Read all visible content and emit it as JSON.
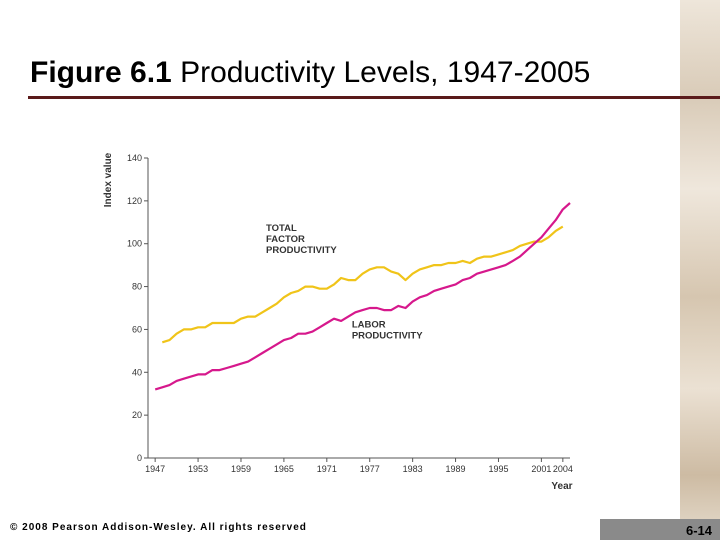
{
  "title": {
    "bold": "Figure 6.1",
    "rest": "Productivity Levels, 1947-2005"
  },
  "footer": {
    "copyright": "© 2008 Pearson Addison-Wesley. All rights reserved",
    "slide_number": "6-14"
  },
  "colors": {
    "tfp": "#f0c419",
    "labor": "#d6188c",
    "axis": "#555555",
    "label": "#333333"
  },
  "chart_data": {
    "type": "line",
    "ylabel": "Index value",
    "xlabel": "Year",
    "xlim": [
      1946,
      2005
    ],
    "ylim": [
      0,
      140
    ],
    "xticks": [
      1947,
      1953,
      1959,
      1965,
      1971,
      1977,
      1983,
      1989,
      1995,
      2001,
      2004
    ],
    "yticks": [
      0,
      20,
      40,
      60,
      80,
      100,
      120,
      140
    ],
    "series": [
      {
        "name": "TOTAL FACTOR PRODUCTIVITY",
        "label_lines": [
          "TOTAL",
          "FACTOR",
          "PRODUCTIVITY"
        ],
        "x": [
          1948,
          1949,
          1950,
          1951,
          1952,
          1953,
          1954,
          1955,
          1956,
          1957,
          1958,
          1959,
          1960,
          1961,
          1962,
          1963,
          1964,
          1965,
          1966,
          1967,
          1968,
          1969,
          1970,
          1971,
          1972,
          1973,
          1974,
          1975,
          1976,
          1977,
          1978,
          1979,
          1980,
          1981,
          1982,
          1983,
          1984,
          1985,
          1986,
          1987,
          1988,
          1989,
          1990,
          1991,
          1992,
          1993,
          1994,
          1995,
          1996,
          1997,
          1998,
          1999,
          2000,
          2001,
          2002,
          2003,
          2004
        ],
        "values": [
          54,
          55,
          58,
          60,
          60,
          61,
          61,
          63,
          63,
          63,
          63,
          65,
          66,
          66,
          68,
          70,
          72,
          75,
          77,
          78,
          80,
          80,
          79,
          79,
          81,
          84,
          83,
          83,
          86,
          88,
          89,
          89,
          87,
          86,
          83,
          86,
          88,
          89,
          90,
          90,
          91,
          91,
          92,
          91,
          93,
          94,
          94,
          95,
          96,
          97,
          99,
          100,
          101,
          101,
          103,
          106,
          108
        ]
      },
      {
        "name": "LABOR PRODUCTIVITY",
        "label_lines": [
          "LABOR",
          "PRODUCTIVITY"
        ],
        "x": [
          1947,
          1948,
          1949,
          1950,
          1951,
          1952,
          1953,
          1954,
          1955,
          1956,
          1957,
          1958,
          1959,
          1960,
          1961,
          1962,
          1963,
          1964,
          1965,
          1966,
          1967,
          1968,
          1969,
          1970,
          1971,
          1972,
          1973,
          1974,
          1975,
          1976,
          1977,
          1978,
          1979,
          1980,
          1981,
          1982,
          1983,
          1984,
          1985,
          1986,
          1987,
          1988,
          1989,
          1990,
          1991,
          1992,
          1993,
          1994,
          1995,
          1996,
          1997,
          1998,
          1999,
          2000,
          2001,
          2002,
          2003,
          2004,
          2005
        ],
        "values": [
          32,
          33,
          34,
          36,
          37,
          38,
          39,
          39,
          41,
          41,
          42,
          43,
          44,
          45,
          47,
          49,
          51,
          53,
          55,
          56,
          58,
          58,
          59,
          61,
          63,
          65,
          64,
          66,
          68,
          69,
          70,
          70,
          69,
          69,
          71,
          70,
          73,
          75,
          76,
          78,
          79,
          80,
          81,
          83,
          84,
          86,
          87,
          88,
          89,
          90,
          92,
          94,
          97,
          100,
          103,
          107,
          111,
          116,
          119
        ]
      }
    ]
  }
}
